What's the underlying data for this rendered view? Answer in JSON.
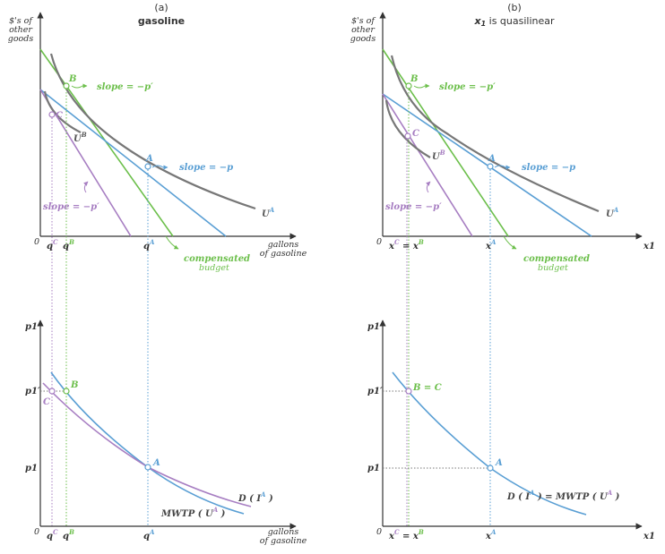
{
  "panel_a": {
    "letter": "(a)",
    "title": "gasoline",
    "top_y_axis": "$'s of other goods",
    "top_x_axis": "gallons of gasoline",
    "origin": "0",
    "ticks": {
      "qC": "q",
      "qB": "q",
      "qA": "q",
      "supC": "C",
      "supB": "B",
      "supA": "A"
    },
    "points": {
      "A": "A",
      "B": "B",
      "C": "C"
    },
    "slope_p": "slope = −p",
    "slope_pprime_green": "slope = −p′",
    "slope_pprime_purple": "slope = −p′",
    "UA": "U",
    "UA_sup": "A",
    "UB": "U",
    "UB_sup": "B",
    "compensated": "compensated",
    "budget": "budget",
    "bottom_y_axis": "p1",
    "p1prime": "p1′",
    "p1": "p1",
    "demand": "D ( I",
    "demand_sup": "A",
    "demand_end": " )",
    "mwtp": "MWTP ( U",
    "mwtp_sup": "A",
    "mwtp_end": " )",
    "bottom_x_axis": "gallons of gasoline"
  },
  "panel_b": {
    "letter": "(b)",
    "title_x": "x",
    "title_sub": "1",
    "title_rest": " is quasilinear",
    "top_y_axis": "$'s of other goods",
    "origin": "0",
    "x_axis": "x1",
    "ticks": {
      "xC_eq_xB": "x = x",
      "xA": "x"
    },
    "points": {
      "A": "A",
      "B": "B",
      "C": "C",
      "BC": "B = C"
    },
    "slope_p": "slope = −p",
    "slope_pprime_green": "slope = −p′",
    "slope_pprime_purple": "slope = −p′",
    "UA": "U",
    "UA_sup": "A",
    "UB": "U",
    "UB_sup": "B",
    "compensated": "compensated",
    "budget": "budget",
    "bottom_y_axis": "p1",
    "p1prime": "p1′",
    "p1": "p1",
    "demand": "D ( I",
    "demand_sup": "A",
    "demand_mid": " ) = MWTP ( U",
    "demand_sup2": "A",
    "demand_end": " )"
  },
  "colors": {
    "blue": "#5a9fd4",
    "green": "#6cbf4b",
    "purple": "#a77ec2",
    "gray": "#777777",
    "axis": "#333333"
  }
}
